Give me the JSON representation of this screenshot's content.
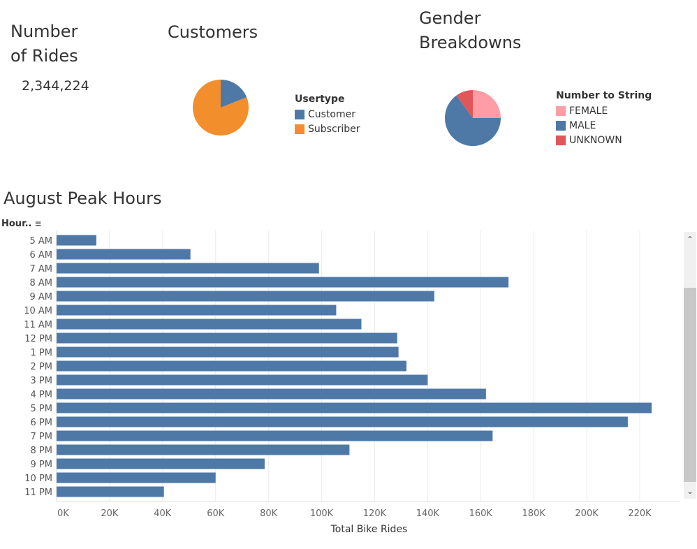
{
  "kpi": {
    "title": "Number of Rides",
    "value": "2,344,224"
  },
  "customers": {
    "title": "Customers",
    "legend_title": "Usertype",
    "slices": [
      {
        "label": "Customer",
        "value": 19,
        "color": "#4e79a7"
      },
      {
        "label": "Subscriber",
        "value": 81,
        "color": "#f28e2b"
      }
    ]
  },
  "gender": {
    "title": "Gender Breakdowns",
    "legend_title": "Number to String",
    "slices": [
      {
        "label": "FEMALE",
        "value": 25,
        "color": "#ff9da7"
      },
      {
        "label": "MALE",
        "value": 65,
        "color": "#4e79a7"
      },
      {
        "label": "UNKNOWN",
        "value": 10,
        "color": "#e15759"
      }
    ]
  },
  "chart_data": {
    "type": "bar",
    "orientation": "horizontal",
    "title": "August Peak Hours",
    "ylabel": "Hour..",
    "xlabel": "Total Bike Rides",
    "categories": [
      "5 AM",
      "6 AM",
      "7 AM",
      "8 AM",
      "9 AM",
      "10 AM",
      "11 AM",
      "12 PM",
      "1 PM",
      "2 PM",
      "3 PM",
      "4 PM",
      "5 PM",
      "6 PM",
      "7 PM",
      "8 PM",
      "9 PM",
      "10 PM",
      "11 PM"
    ],
    "values": [
      15000,
      50500,
      99000,
      170500,
      142500,
      105500,
      115000,
      128500,
      129000,
      132000,
      140000,
      162000,
      224500,
      215500,
      164500,
      110500,
      78500,
      60000,
      40500
    ],
    "xlim": [
      0,
      235000
    ],
    "ticks": [
      0,
      20000,
      40000,
      60000,
      80000,
      100000,
      120000,
      140000,
      160000,
      180000,
      200000,
      220000
    ],
    "tick_labels": [
      "0K",
      "20K",
      "40K",
      "60K",
      "80K",
      "100K",
      "120K",
      "140K",
      "160K",
      "180K",
      "200K",
      "220K"
    ],
    "bar_color": "#4e79a7",
    "grid": true
  }
}
